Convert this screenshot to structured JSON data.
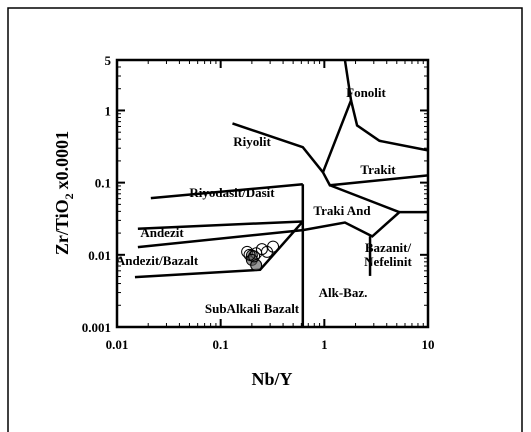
{
  "chart_data": {
    "type": "scatter",
    "xlabel": "Nb/Y",
    "ylabel": {
      "main": "Zr/TiO",
      "sub": "2",
      "rest": "x0.0001"
    },
    "xscale": "log",
    "yscale": "log",
    "xlim": [
      0.01,
      10
    ],
    "ylim": [
      0.001,
      5
    ],
    "xticks": [
      0.01,
      0.1,
      1,
      10
    ],
    "yticks": [
      0.001,
      0.01,
      0.1,
      1,
      5
    ],
    "fields": [
      "Fonolit",
      "Riyolit",
      "Trakit",
      "Riyodasit/Dasit",
      "Traki And",
      "Andezit",
      "Bazanit/",
      "Nefelinit",
      "Andezit/Bazalt",
      "Alk-Baz.",
      "SubAlkali Bazalt"
    ],
    "boundaries": [
      {
        "x": [
          0.13,
          0.62,
          0.97,
          1.13,
          10
        ],
        "y": [
          0.66,
          0.31,
          0.139,
          0.092,
          0.126
        ]
      },
      {
        "x": [
          1.58,
          1.81,
          0.97
        ],
        "y": [
          4.99,
          1.38,
          0.139
        ]
      },
      {
        "x": [
          1.81,
          2.07,
          3.4,
          10
        ],
        "y": [
          1.38,
          0.62,
          0.38,
          0.28
        ]
      },
      {
        "x": [
          0.0212,
          0.62
        ],
        "y": [
          0.061,
          0.095
        ]
      },
      {
        "x": [
          0.62,
          0.62
        ],
        "y": [
          0.095,
          0.001
        ]
      },
      {
        "x": [
          0.0159,
          0.62
        ],
        "y": [
          0.023,
          0.029
        ]
      },
      {
        "x": [
          0.0159,
          0.62
        ],
        "y": [
          0.0128,
          0.022
        ]
      },
      {
        "x": [
          0.0149,
          0.24,
          0.62
        ],
        "y": [
          0.0049,
          0.0062,
          0.029
        ]
      },
      {
        "x": [
          0.62,
          1.58,
          2.9,
          5.3,
          10
        ],
        "y": [
          0.022,
          0.028,
          0.018,
          0.039,
          0.039
        ]
      },
      {
        "x": [
          1.13,
          5.3
        ],
        "y": [
          0.092,
          0.039
        ]
      },
      {
        "x": [
          2.76,
          2.76
        ],
        "y": [
          0.018,
          0.0051
        ]
      }
    ],
    "series": [
      {
        "color": "#000000",
        "x": [
          0.18,
          0.2,
          0.22,
          0.25,
          0.2,
          0.28,
          0.32,
          0.22,
          0.19,
          0.21
        ],
        "values": [
          0.011,
          0.0098,
          0.0105,
          0.012,
          0.0085,
          0.011,
          0.013,
          0.0072,
          0.01,
          0.0095
        ]
      }
    ]
  }
}
